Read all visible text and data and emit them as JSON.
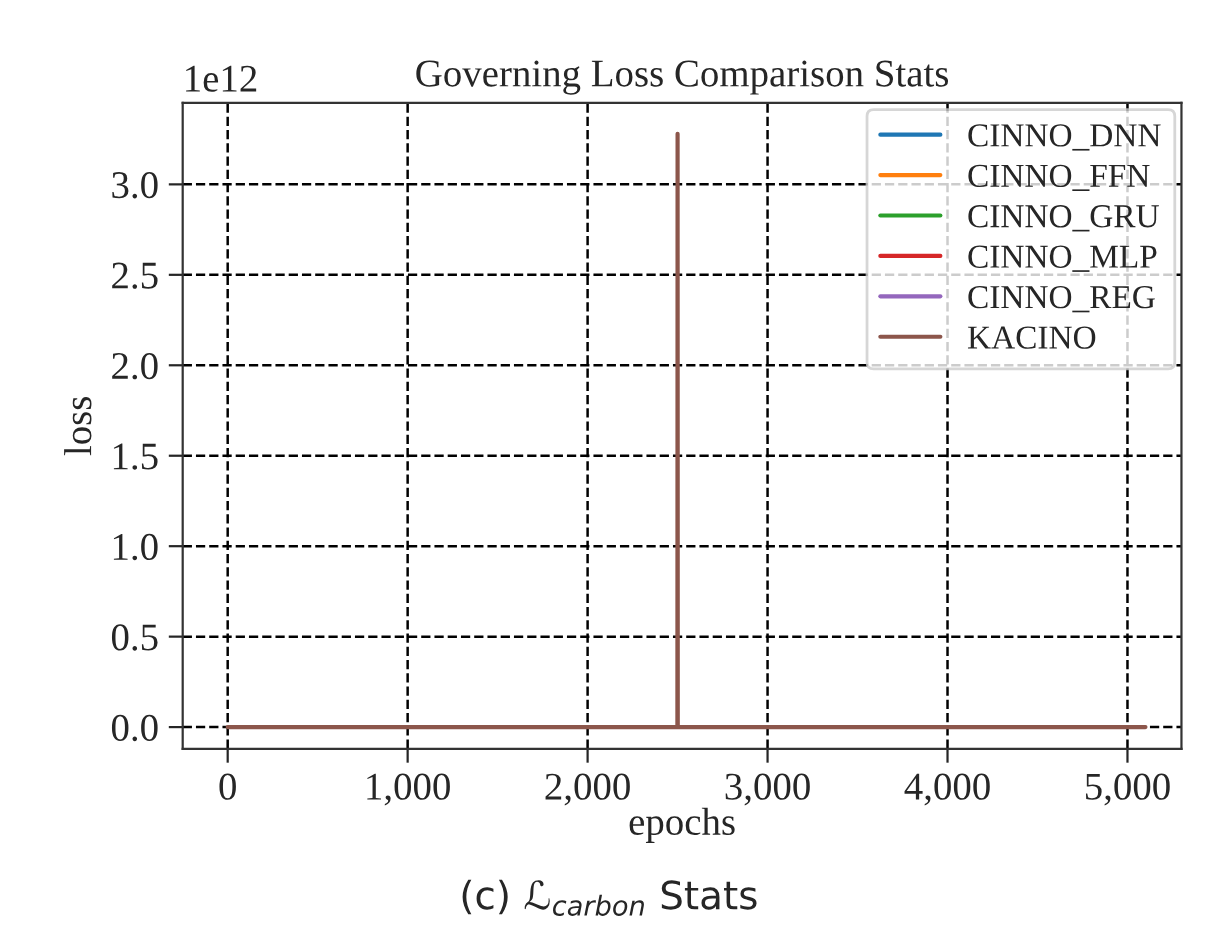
{
  "chart_data": {
    "type": "line",
    "title": "Governing Loss Comparison Stats",
    "xlabel": "epochs",
    "ylabel": "loss",
    "annotations": [
      "1e12",
      "(c) ℒ$_{carbon}$ Stats"
    ],
    "series": [
      {
        "name": "CINNO_DNN",
        "color": "#1f77b4"
      },
      {
        "name": "CINNO_FFN",
        "color": "#ff7f0e"
      },
      {
        "name": "CINNO_GRU",
        "color": "#2ca02c"
      },
      {
        "name": "CINNO_MLP",
        "color": "#d62728"
      },
      {
        "name": "CINNO_REG",
        "color": "#9467bd"
      },
      {
        "name": "KACINO",
        "color": "#8c564b",
        "x": [
          0,
          2499,
          2500,
          2501,
          5100
        ],
        "values": [
          0,
          0,
          3.28,
          0,
          0
        ]
      }
    ],
    "xlim": [
      -250,
      5300
    ],
    "ylim": [
      -0.12,
      3.45
    ],
    "xticks": [
      {
        "value": 0,
        "label": "0"
      },
      {
        "value": 1000,
        "label": "1,000"
      },
      {
        "value": 2000,
        "label": "2,000"
      },
      {
        "value": 3000,
        "label": "3,000"
      },
      {
        "value": 4000,
        "label": "4,000"
      },
      {
        "value": 5000,
        "label": "5,000"
      }
    ],
    "yticks": [
      {
        "value": 0,
        "label": "0.0"
      },
      {
        "value": 0.5,
        "label": "0.5"
      },
      {
        "value": 1,
        "label": "1.0"
      },
      {
        "value": 1.5,
        "label": "1.5"
      },
      {
        "value": 2,
        "label": "2.0"
      },
      {
        "value": 2.5,
        "label": "2.5"
      },
      {
        "value": 3,
        "label": "3.0"
      }
    ],
    "grid": true,
    "legend": "top right",
    "line_style": "solid",
    "marker": "none"
  }
}
